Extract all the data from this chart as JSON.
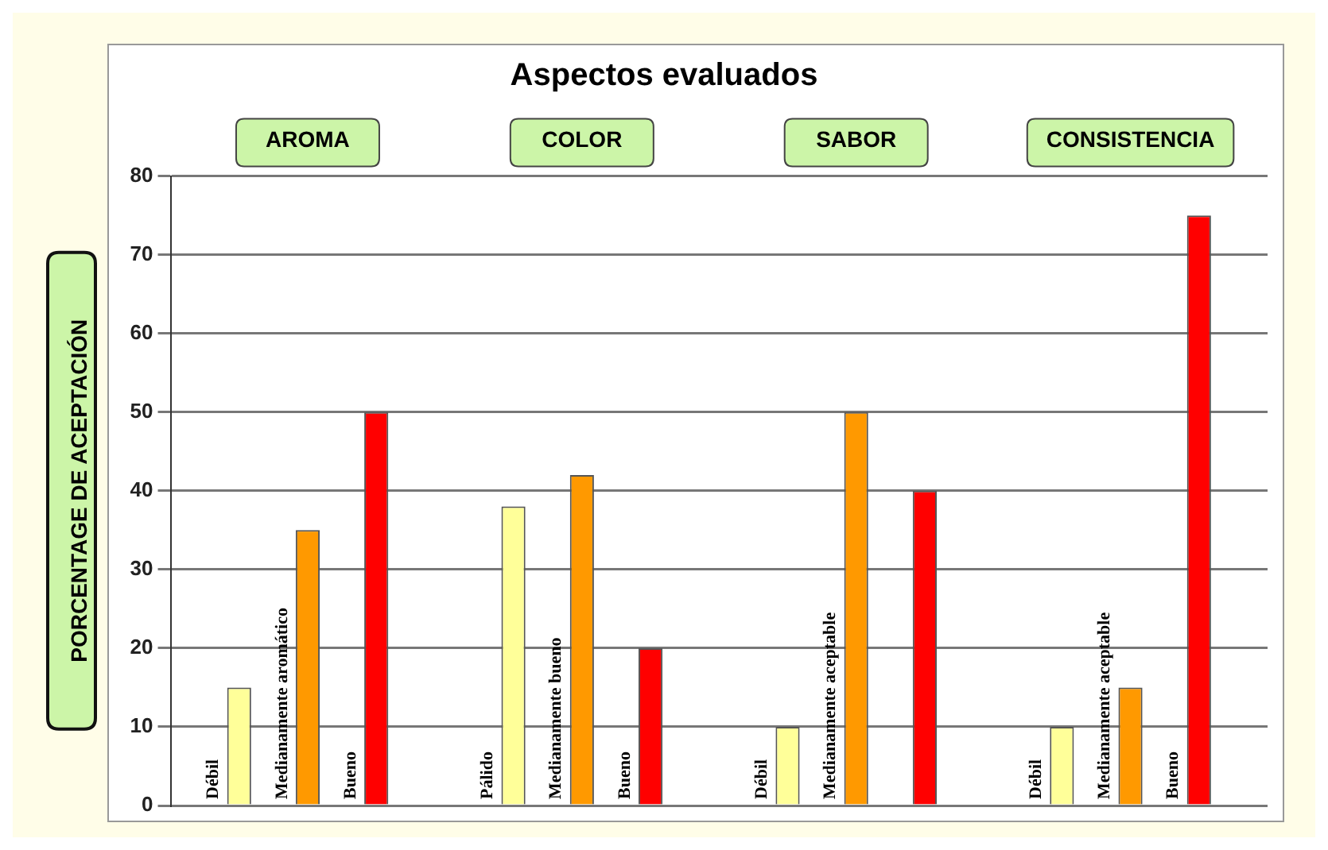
{
  "chart_data": {
    "type": "bar",
    "title": "Aspectos evaluados",
    "ylabel": "PORCENTAGE DE ACEPTACIÓN",
    "categories": [
      "AROMA",
      "COLOR",
      "SABOR",
      "CONSISTENCIA"
    ],
    "series": [
      {
        "color": "#ffff99",
        "values": [
          15,
          38,
          10,
          10
        ],
        "value_labels": [
          "Débil",
          "Pálido",
          "Débil",
          "Débil"
        ]
      },
      {
        "color": "#ff9900",
        "values": [
          35,
          42,
          50,
          15
        ],
        "value_labels": [
          "Medianamente aromático",
          "Medianamente bueno",
          "Medianamente aceptable",
          "Medianamente aceptable"
        ]
      },
      {
        "color": "#ff0000",
        "values": [
          50,
          20,
          40,
          75
        ],
        "value_labels": [
          "Bueno",
          "Bueno",
          null,
          "Bueno"
        ]
      }
    ],
    "ylim": [
      0,
      80
    ],
    "yticks": [
      0,
      10,
      20,
      30,
      40,
      50,
      60,
      70,
      80
    ],
    "grid": "y",
    "legend": false
  }
}
